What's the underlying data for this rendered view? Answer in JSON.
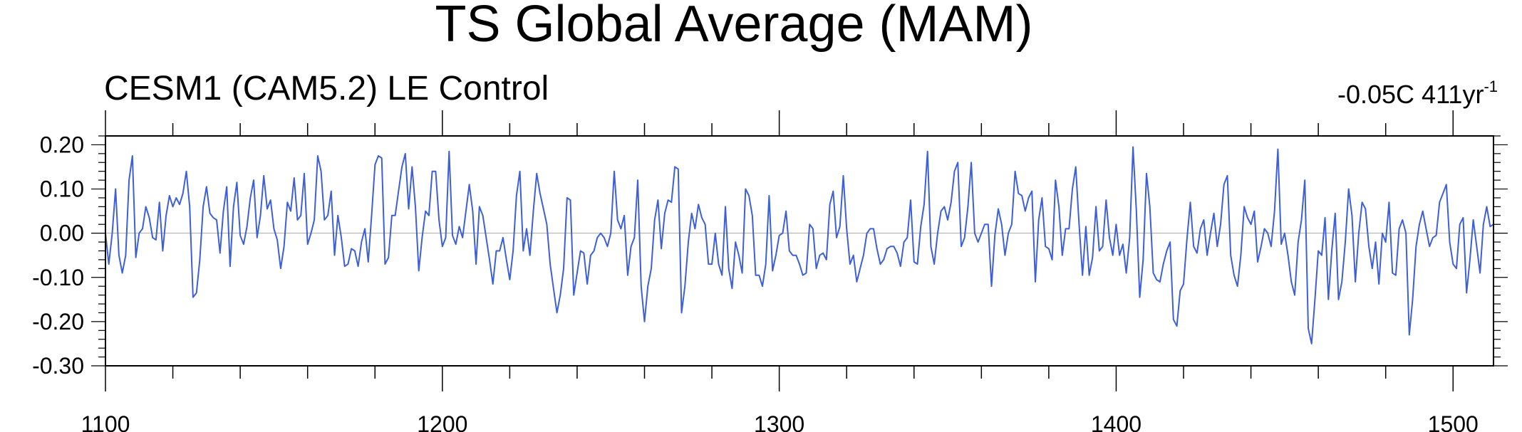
{
  "chart_data": {
    "type": "line",
    "title": "TS Global Average (MAM)",
    "subtitle": "CESM1 (CAM5.2) LE Control",
    "trend_label": "-0.05C 411yr",
    "trend_superscript": "-1",
    "xlabel": "",
    "ylabel": "",
    "xlim": [
      1100,
      1512
    ],
    "ylim": [
      -0.3,
      0.22
    ],
    "x_ticks": [
      1100,
      1200,
      1300,
      1400,
      1500
    ],
    "y_ticks": [
      0.2,
      0.1,
      0.0,
      -0.1,
      -0.2,
      -0.3
    ],
    "x_tick_labels": [
      "1100",
      "1200",
      "1300",
      "1400",
      "1500"
    ],
    "y_tick_labels": [
      "0.20",
      "0.10",
      "0.00",
      "-0.10",
      "-0.20",
      "-0.30"
    ],
    "reference_line": 0.0,
    "grid": false,
    "line_color": "#3d5fd9",
    "series": [
      {
        "x_start": 1100,
        "x_step": 1,
        "values": [
          0.0,
          -0.07,
          0.0,
          0.1,
          -0.05,
          -0.09,
          -0.05,
          0.12,
          0.175,
          -0.055,
          0.0,
          0.01,
          0.06,
          0.035,
          -0.01,
          -0.015,
          0.07,
          -0.04,
          0.04,
          0.085,
          0.06,
          0.08,
          0.065,
          0.09,
          0.14,
          0.06,
          -0.145,
          -0.135,
          -0.06,
          0.06,
          0.105,
          0.045,
          0.035,
          0.03,
          -0.045,
          0.05,
          0.105,
          -0.075,
          0.06,
          0.115,
          -0.005,
          -0.025,
          0.015,
          0.08,
          0.12,
          -0.01,
          0.04,
          0.13,
          0.055,
          0.075,
          0.01,
          -0.015,
          -0.08,
          -0.03,
          0.07,
          0.05,
          0.125,
          0.03,
          0.04,
          0.135,
          -0.025,
          0.0,
          0.03,
          0.175,
          0.14,
          0.03,
          0.04,
          0.095,
          -0.05,
          0.04,
          -0.01,
          -0.075,
          -0.07,
          -0.035,
          -0.04,
          -0.075,
          -0.02,
          0.01,
          -0.065,
          0.04,
          0.155,
          0.175,
          0.17,
          -0.07,
          -0.055,
          0.04,
          0.04,
          0.095,
          0.15,
          0.18,
          0.055,
          0.15,
          0.06,
          -0.085,
          -0.01,
          0.05,
          0.04,
          0.14,
          0.14,
          0.03,
          -0.03,
          -0.01,
          0.185,
          -0.005,
          -0.025,
          0.015,
          -0.01,
          0.05,
          0.11,
          0.05,
          -0.07,
          0.06,
          0.04,
          -0.01,
          -0.06,
          -0.115,
          -0.04,
          -0.04,
          -0.01,
          -0.06,
          -0.105,
          -0.04,
          0.085,
          0.14,
          -0.04,
          0.01,
          -0.05,
          0.05,
          0.135,
          0.09,
          0.055,
          0.02,
          -0.07,
          -0.125,
          -0.18,
          -0.14,
          -0.08,
          0.08,
          0.075,
          -0.14,
          -0.09,
          -0.04,
          -0.045,
          -0.115,
          -0.05,
          -0.04,
          -0.01,
          0.0,
          -0.01,
          -0.03,
          0.0,
          0.14,
          0.03,
          0.01,
          0.04,
          -0.095,
          -0.03,
          -0.01,
          0.12,
          -0.12,
          -0.2,
          -0.12,
          -0.08,
          0.03,
          0.075,
          -0.035,
          0.045,
          0.075,
          0.07,
          0.15,
          0.145,
          -0.18,
          -0.12,
          -0.02,
          0.045,
          0.01,
          0.065,
          0.035,
          0.02,
          -0.07,
          -0.07,
          0.0,
          -0.07,
          -0.095,
          0.06,
          -0.08,
          -0.125,
          -0.02,
          -0.05,
          -0.09,
          0.1,
          0.085,
          0.04,
          -0.095,
          -0.095,
          -0.12,
          -0.07,
          0.085,
          -0.085,
          -0.05,
          -0.005,
          0.0,
          0.05,
          -0.04,
          -0.05,
          -0.05,
          -0.07,
          -0.095,
          -0.09,
          0.02,
          0.01,
          -0.08,
          -0.05,
          -0.045,
          -0.06,
          0.065,
          0.095,
          -0.01,
          0.015,
          0.13,
          0.01,
          -0.07,
          -0.05,
          -0.11,
          -0.08,
          -0.05,
          0.0,
          0.01,
          0.01,
          -0.035,
          -0.07,
          -0.06,
          -0.035,
          -0.03,
          -0.03,
          -0.045,
          -0.075,
          -0.02,
          -0.01,
          0.075,
          -0.065,
          -0.07,
          0.015,
          0.065,
          0.185,
          -0.03,
          -0.07,
          0.0,
          0.05,
          0.06,
          0.03,
          0.07,
          0.14,
          0.16,
          -0.03,
          -0.01,
          0.06,
          0.16,
          0.0,
          -0.02,
          0.0,
          0.02,
          0.02,
          -0.12,
          -0.005,
          0.055,
          0.02,
          -0.05,
          0.0,
          0.02,
          0.14,
          0.09,
          0.085,
          0.05,
          0.08,
          0.095,
          -0.11,
          0.03,
          0.08,
          -0.03,
          -0.035,
          -0.06,
          0.12,
          0.06,
          -0.05,
          0.01,
          0.01,
          0.1,
          0.15,
          0.02,
          -0.095,
          0.015,
          -0.095,
          -0.055,
          0.06,
          -0.04,
          -0.03,
          0.075,
          -0.01,
          -0.05,
          0.02,
          -0.05,
          -0.025,
          -0.09,
          -0.01,
          0.195,
          0.05,
          -0.145,
          -0.06,
          0.135,
          0.06,
          -0.09,
          -0.105,
          -0.11,
          -0.07,
          -0.04,
          -0.02,
          -0.195,
          -0.21,
          -0.13,
          -0.115,
          -0.015,
          0.07,
          -0.03,
          -0.045,
          0.01,
          0.03,
          -0.05,
          0.0,
          0.045,
          -0.03,
          0.02,
          0.11,
          0.13,
          -0.05,
          -0.095,
          -0.12,
          -0.05,
          0.06,
          0.035,
          0.02,
          0.05,
          -0.065,
          -0.03,
          0.01,
          0.0,
          -0.03,
          0.05,
          0.19,
          -0.025,
          0.0,
          -0.05,
          -0.11,
          -0.14,
          -0.02,
          0.03,
          0.12,
          -0.215,
          -0.25,
          -0.15,
          -0.04,
          -0.05,
          0.035,
          -0.15,
          -0.04,
          0.045,
          -0.15,
          -0.11,
          -0.02,
          0.1,
          0.04,
          -0.11,
          0.0,
          0.07,
          0.055,
          -0.03,
          -0.08,
          -0.02,
          -0.115,
          0.0,
          -0.02,
          0.07,
          -0.09,
          -0.095,
          0.01,
          0.03,
          0.0,
          -0.23,
          -0.15,
          -0.03,
          0.02,
          0.05,
          0.01,
          -0.03,
          -0.01,
          -0.005,
          0.07,
          0.09,
          0.11,
          -0.02,
          -0.07,
          -0.08,
          0.02,
          0.035,
          -0.135,
          -0.06,
          0.03,
          -0.03,
          -0.09,
          0.02,
          0.06,
          0.015,
          0.02
        ]
      }
    ]
  }
}
